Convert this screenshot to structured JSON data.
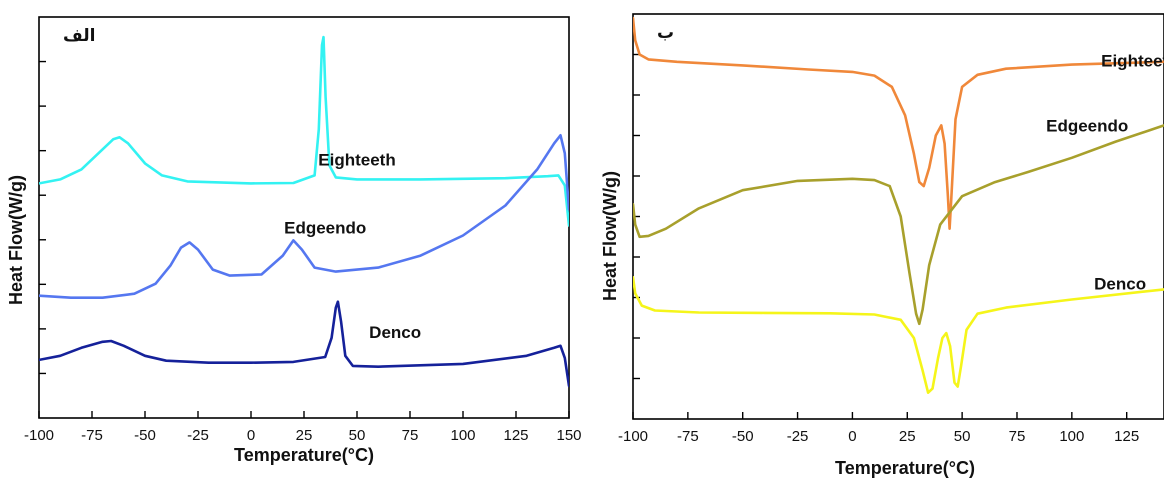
{
  "chart_data": [
    {
      "type": "line",
      "panel_label": "الف",
      "xlabel": "Temperature(°C)",
      "ylabel": "Heat Flow(W/g)",
      "xlim": [
        -100,
        150
      ],
      "ylim": [
        0,
        100
      ],
      "xticks": [
        -100,
        -75,
        -50,
        -25,
        0,
        25,
        50,
        75,
        100,
        125,
        150
      ],
      "yticks_count": 8,
      "grid": false,
      "legend": "none (inline curve labels)",
      "series": [
        {
          "name": "Eighteeth",
          "color": "#33f2f2",
          "label_at": [
            50,
            63
          ],
          "points": [
            [
              -100,
              58.5
            ],
            [
              -90,
              59.5
            ],
            [
              -80,
              62
            ],
            [
              -72,
              66
            ],
            [
              -65,
              69.5
            ],
            [
              -62,
              70
            ],
            [
              -58,
              68.5
            ],
            [
              -50,
              63.5
            ],
            [
              -42,
              60.5
            ],
            [
              -30,
              59
            ],
            [
              0,
              58.5
            ],
            [
              20,
              58.6
            ],
            [
              30,
              60.5
            ],
            [
              32,
              72
            ],
            [
              33.5,
              93
            ],
            [
              34.2,
              95
            ],
            [
              35.2,
              80
            ],
            [
              37,
              63
            ],
            [
              40,
              60
            ],
            [
              50,
              59.5
            ],
            [
              80,
              59.5
            ],
            [
              120,
              59.8
            ],
            [
              140,
              60.3
            ],
            [
              145,
              60.5
            ],
            [
              148,
              58
            ],
            [
              150,
              48
            ]
          ]
        },
        {
          "name": "Edgeendo",
          "color": "#5577f0",
          "label_at": [
            35,
            46
          ],
          "points": [
            [
              -100,
              30.5
            ],
            [
              -85,
              30
            ],
            [
              -70,
              30
            ],
            [
              -55,
              31
            ],
            [
              -45,
              33.5
            ],
            [
              -38,
              38
            ],
            [
              -33,
              42.5
            ],
            [
              -29,
              43.8
            ],
            [
              -25,
              42
            ],
            [
              -18,
              37
            ],
            [
              -10,
              35.5
            ],
            [
              5,
              35.8
            ],
            [
              15,
              40.5
            ],
            [
              20,
              44.3
            ],
            [
              24,
              42
            ],
            [
              30,
              37.5
            ],
            [
              40,
              36.5
            ],
            [
              60,
              37.5
            ],
            [
              80,
              40.5
            ],
            [
              100,
              45.5
            ],
            [
              120,
              53
            ],
            [
              135,
              62
            ],
            [
              143,
              68.5
            ],
            [
              146,
              70.5
            ],
            [
              148,
              66
            ],
            [
              150,
              52
            ]
          ]
        },
        {
          "name": "Denco",
          "color": "#15219a",
          "label_at": [
            68,
            20
          ],
          "points": [
            [
              -100,
              14.5
            ],
            [
              -90,
              15.5
            ],
            [
              -80,
              17.5
            ],
            [
              -70,
              19
            ],
            [
              -66,
              19.2
            ],
            [
              -60,
              18
            ],
            [
              -50,
              15.5
            ],
            [
              -40,
              14.3
            ],
            [
              -20,
              13.8
            ],
            [
              0,
              13.8
            ],
            [
              20,
              14
            ],
            [
              35,
              15.2
            ],
            [
              38,
              20
            ],
            [
              40,
              27.5
            ],
            [
              41,
              29
            ],
            [
              42.5,
              24
            ],
            [
              44.5,
              15.5
            ],
            [
              48,
              13
            ],
            [
              60,
              12.8
            ],
            [
              100,
              13.5
            ],
            [
              130,
              15.5
            ],
            [
              143,
              17.5
            ],
            [
              146,
              18
            ],
            [
              148,
              15
            ],
            [
              150,
              8
            ]
          ]
        }
      ]
    },
    {
      "type": "line",
      "panel_label": "ب",
      "xlabel": "Temperature(°C)",
      "ylabel": "Heat Flow(W/g)",
      "xlim": [
        -100,
        142
      ],
      "ylim": [
        0,
        100
      ],
      "xticks": [
        -100,
        -75,
        -50,
        -25,
        0,
        25,
        50,
        75,
        100,
        125
      ],
      "yticks_count": 9,
      "grid": false,
      "legend": "none (inline curve labels)",
      "series": [
        {
          "name": "Eighteeth",
          "color": "#f0883a",
          "label_at": [
            131,
            87
          ],
          "points": [
            [
              -100,
              99
            ],
            [
              -99,
              93.5
            ],
            [
              -97,
              90
            ],
            [
              -93,
              88.8
            ],
            [
              -80,
              88.2
            ],
            [
              -50,
              87.3
            ],
            [
              -20,
              86.3
            ],
            [
              0,
              85.7
            ],
            [
              10,
              84.8
            ],
            [
              18,
              82
            ],
            [
              24,
              75
            ],
            [
              28,
              65.5
            ],
            [
              30.5,
              58.5
            ],
            [
              32.5,
              57.5
            ],
            [
              35,
              62
            ],
            [
              38,
              70
            ],
            [
              40.5,
              72.5
            ],
            [
              42,
              68
            ],
            [
              43.5,
              55
            ],
            [
              44.3,
              47
            ],
            [
              45,
              54
            ],
            [
              47,
              74
            ],
            [
              50,
              82
            ],
            [
              57,
              85
            ],
            [
              70,
              86.5
            ],
            [
              100,
              87.5
            ],
            [
              142,
              88.2
            ]
          ]
        },
        {
          "name": "Edgeendo",
          "color": "#a8a02c",
          "label_at": [
            107,
            71
          ],
          "points": [
            [
              -100,
              53
            ],
            [
              -99,
              48
            ],
            [
              -97,
              45
            ],
            [
              -93,
              45.2
            ],
            [
              -85,
              47
            ],
            [
              -70,
              52
            ],
            [
              -50,
              56.5
            ],
            [
              -25,
              58.8
            ],
            [
              0,
              59.3
            ],
            [
              10,
              59
            ],
            [
              17,
              57.5
            ],
            [
              22,
              50
            ],
            [
              26,
              36
            ],
            [
              29,
              26
            ],
            [
              30.5,
              23.5
            ],
            [
              32,
              27
            ],
            [
              35,
              38
            ],
            [
              40,
              48
            ],
            [
              50,
              55
            ],
            [
              65,
              58.5
            ],
            [
              80,
              61
            ],
            [
              100,
              64.5
            ],
            [
              120,
              68.5
            ],
            [
              142,
              72.5
            ]
          ]
        },
        {
          "name": "Denco",
          "color": "#f5f51a",
          "label_at": [
            122,
            32
          ],
          "points": [
            [
              -100,
              35
            ],
            [
              -99,
              31
            ],
            [
              -96,
              28
            ],
            [
              -90,
              26.8
            ],
            [
              -70,
              26.3
            ],
            [
              -40,
              26.2
            ],
            [
              -10,
              26.1
            ],
            [
              10,
              25.8
            ],
            [
              22,
              24.5
            ],
            [
              28,
              20
            ],
            [
              32,
              12
            ],
            [
              34.5,
              6.5
            ],
            [
              36.5,
              7.5
            ],
            [
              39,
              15
            ],
            [
              41,
              20
            ],
            [
              42.8,
              21.2
            ],
            [
              44.5,
              18
            ],
            [
              46.5,
              9
            ],
            [
              48,
              8
            ],
            [
              49.5,
              13
            ],
            [
              52,
              22
            ],
            [
              57,
              26
            ],
            [
              70,
              27.5
            ],
            [
              100,
              29.5
            ],
            [
              142,
              32
            ]
          ]
        }
      ]
    }
  ]
}
